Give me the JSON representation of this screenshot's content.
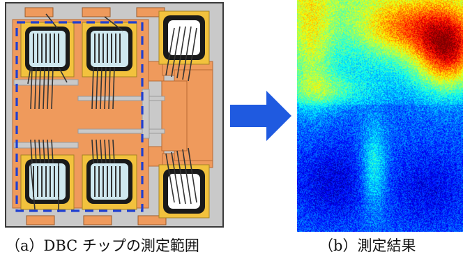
{
  "captions": {
    "left": "（a）DBC チップの測定範囲",
    "right": "（b）測定結果"
  },
  "colors": {
    "substrate_border": "#3a3a3a",
    "substrate_fill": "#c9c9c9",
    "copper": "#ef9a5c",
    "copper_dark": "#d5773a",
    "pad_yellow": "#f2c23d",
    "chip_face": "#cfe8ef",
    "dashed_box": "#1f3fd1",
    "arrow": "#1f5ae0",
    "wire": "#333333"
  },
  "icons": {
    "arrow": "right-arrow-icon"
  }
}
